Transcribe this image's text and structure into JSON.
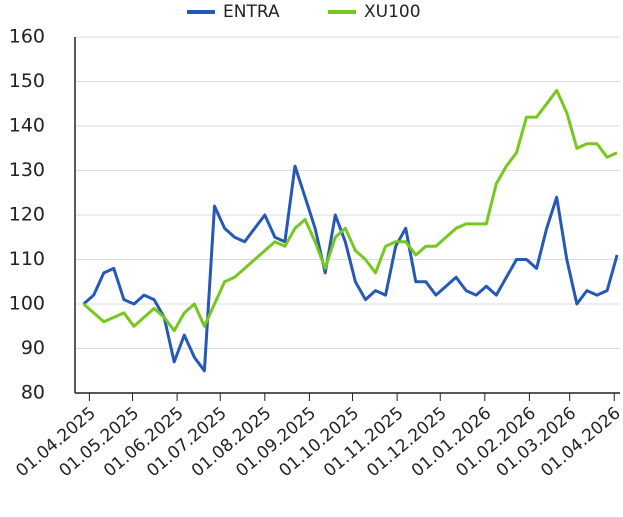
{
  "chart_data": {
    "type": "line",
    "x": [
      "28.03.2025",
      "04.04.2025",
      "11.04.2025",
      "18.04.2025",
      "25.04.2025",
      "02.05.2025",
      "09.05.2025",
      "16.05.2025",
      "23.05.2025",
      "30.05.2025",
      "06.06.2025",
      "13.06.2025",
      "20.06.2025",
      "27.06.2025",
      "04.07.2025",
      "11.07.2025",
      "18.07.2025",
      "25.07.2025",
      "01.08.2025",
      "08.08.2025",
      "15.08.2025",
      "22.08.2025",
      "29.08.2025",
      "05.09.2025",
      "12.09.2025",
      "19.09.2025",
      "26.09.2025",
      "03.10.2025",
      "10.10.2025",
      "17.10.2025",
      "24.10.2025",
      "31.10.2025",
      "07.11.2025",
      "14.11.2025",
      "21.11.2025",
      "28.11.2025",
      "05.12.2025",
      "12.12.2025",
      "19.12.2025",
      "26.12.2025",
      "02.01.2026",
      "09.01.2026",
      "16.01.2026",
      "23.01.2026",
      "30.01.2026",
      "06.02.2026",
      "13.02.2026",
      "20.02.2026",
      "27.02.2026",
      "06.03.2026",
      "13.03.2026",
      "20.03.2026",
      "27.03.2026",
      "03.04.2026"
    ],
    "series": [
      {
        "name": "ENTRA",
        "color": "#2459b8",
        "values": [
          100,
          102,
          107,
          108,
          101,
          100,
          102,
          101,
          97,
          87,
          93,
          88,
          85,
          122,
          117,
          115,
          114,
          117,
          120,
          115,
          114,
          131,
          124,
          117,
          107,
          120,
          114,
          105,
          101,
          103,
          102,
          113,
          117,
          105,
          105,
          102,
          104,
          106,
          103,
          102,
          104,
          102,
          106,
          110,
          110,
          108,
          117,
          124,
          110,
          100,
          103,
          102,
          103,
          111
        ]
      },
      {
        "name": "XU100",
        "color": "#77c81e",
        "values": [
          100,
          98,
          96,
          97,
          98,
          95,
          97,
          99,
          97,
          94,
          98,
          100,
          95,
          100,
          105,
          106,
          108,
          110,
          112,
          114,
          113,
          117,
          119,
          114,
          108,
          115,
          117,
          112,
          110,
          107,
          113,
          114,
          114,
          111,
          113,
          113,
          115,
          117,
          118,
          118,
          118,
          127,
          131,
          134,
          142,
          142,
          145,
          148,
          143,
          135,
          136,
          136,
          133,
          134
        ]
      }
    ],
    "xlim": [
      "22.03.2025",
      "05.04.2026"
    ],
    "xticks": [
      "01.04.2025",
      "01.05.2025",
      "01.06.2025",
      "01.07.2025",
      "01.08.2025",
      "01.09.2025",
      "01.10.2025",
      "01.11.2025",
      "01.12.2025",
      "01.01.2026",
      "01.02.2026",
      "01.03.2026",
      "01.04.2026"
    ],
    "ylim": [
      80,
      160
    ],
    "yticks": [
      80,
      90,
      100,
      110,
      120,
      130,
      140,
      150,
      160
    ],
    "grid": true,
    "legend": "top"
  }
}
